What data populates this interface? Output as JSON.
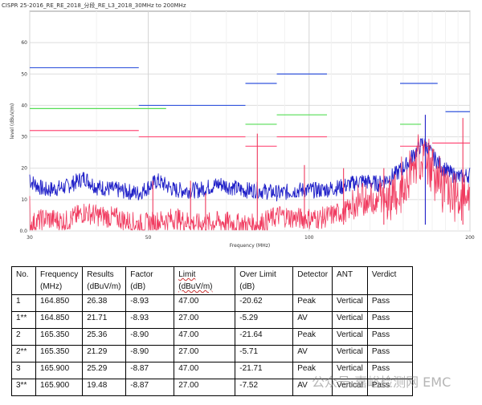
{
  "chart_data": {
    "type": "line",
    "title": "CISPR 25-2016_RE_RE_2018_分段_RE_L3_2018_30MHz to 200MHz",
    "xlabel": "Frequency (MHz)",
    "ylabel": "level (dBuV/m)",
    "xscale": "log",
    "xlim": [
      30,
      200
    ],
    "ylim": [
      0,
      70
    ],
    "x_ticks": [
      30,
      50,
      100,
      200
    ],
    "y_ticks": [
      0,
      10,
      20,
      30,
      40,
      50,
      60
    ],
    "y_tick_labels": [
      "0.0",
      "10",
      "20",
      "30",
      "40",
      "50",
      "60"
    ],
    "grid": true,
    "colors": {
      "peak": "#2020c8",
      "average": "#f03a5f",
      "limit_peak": "#3355dd",
      "limit_avg": "#ff4f7a",
      "limit_green": "#55dd55"
    },
    "limit_lines": [
      {
        "color": "#3355dd",
        "segments": [
          [
            30,
            48,
            52
          ],
          [
            48,
            76,
            40
          ],
          [
            76,
            87,
            47
          ],
          [
            87,
            108,
            50
          ],
          [
            148,
            174,
            47
          ],
          [
            180,
            200,
            38
          ]
        ]
      },
      {
        "color": "#55dd55",
        "segments": [
          [
            30,
            54,
            39
          ],
          [
            76,
            87,
            34
          ],
          [
            87,
            108,
            37
          ],
          [
            148,
            162,
            34
          ]
        ]
      },
      {
        "color": "#ff4f7a",
        "segments": [
          [
            30,
            48,
            32
          ],
          [
            48,
            76,
            30
          ],
          [
            76,
            87,
            27
          ],
          [
            87,
            108,
            30
          ],
          [
            148,
            162,
            27
          ],
          [
            170,
            200,
            28
          ]
        ]
      }
    ],
    "series": [
      {
        "name": "",
        "color": "#2020c8",
        "x": [
          30,
          32,
          35,
          38,
          40,
          44,
          48,
          52,
          56,
          62,
          68,
          75,
          80,
          88,
          95,
          105,
          115,
          125,
          135,
          145,
          152,
          158,
          163,
          166,
          170,
          178,
          185,
          192,
          200
        ],
        "y": [
          16,
          13,
          14,
          17,
          14,
          13,
          12,
          16,
          13,
          13,
          15,
          13,
          13,
          12,
          13,
          13,
          14,
          16,
          15,
          18,
          21,
          25,
          28,
          27,
          24,
          20,
          18,
          17,
          18
        ]
      },
      {
        "name": "",
        "color": "#f03a5f",
        "x": [
          30,
          32,
          35,
          38,
          40,
          44,
          48,
          52,
          56,
          62,
          68,
          75,
          80,
          88,
          95,
          105,
          115,
          125,
          135,
          145,
          152,
          158,
          163,
          166,
          170,
          178,
          185,
          192,
          200
        ],
        "y": [
          2,
          4,
          3,
          6,
          5,
          4,
          2,
          3,
          4,
          2,
          3,
          2,
          2,
          5,
          4,
          4,
          6,
          8,
          9,
          11,
          14,
          20,
          22,
          21,
          18,
          12,
          10,
          8,
          9
        ]
      }
    ],
    "spikes": [
      {
        "x": 51,
        "y": 16,
        "color": "#f03a5f"
      },
      {
        "x": 60,
        "y": 16,
        "color": "#f03a5f"
      },
      {
        "x": 64,
        "y": 12,
        "color": "#f03a5f"
      },
      {
        "x": 80,
        "y": 31,
        "color": "#f03a5f"
      },
      {
        "x": 98,
        "y": 21,
        "color": "#f03a5f"
      },
      {
        "x": 116,
        "y": 20,
        "color": "#f03a5f"
      },
      {
        "x": 138,
        "y": 20,
        "color": "#f03a5f"
      },
      {
        "x": 165,
        "y": 37,
        "color": "#2020c8"
      },
      {
        "x": 194,
        "y": 36,
        "color": "#f03a5f"
      }
    ],
    "markers": [
      {
        "label": "1",
        "x": 164.85,
        "y": 27
      },
      {
        "label": "2",
        "x": 165.35,
        "y": 26
      },
      {
        "label": "3",
        "x": 165.9,
        "y": 25
      }
    ]
  },
  "table": {
    "headers": [
      "No.",
      "Frequency (MHz)",
      "Results (dBuV/m)",
      "Factor (dB)",
      "Limit (dBuV/m)",
      "Over Limit (dB)",
      "Detector",
      "ANT",
      "Verdict"
    ],
    "rows": [
      [
        "1",
        "164.850",
        "26.38",
        "-8.93",
        "47.00",
        "-20.62",
        "Peak",
        "Vertical",
        "Pass"
      ],
      [
        "1**",
        "164.850",
        "21.71",
        "-8.93",
        "27.00",
        "-5.29",
        "AV",
        "Vertical",
        "Pass"
      ],
      [
        "2",
        "165.350",
        "25.36",
        "-8.90",
        "47.00",
        "-21.64",
        "Peak",
        "Vertical",
        "Pass"
      ],
      [
        "2**",
        "165.350",
        "21.29",
        "-8.90",
        "27.00",
        "-5.71",
        "AV",
        "Vertical",
        "Pass"
      ],
      [
        "3",
        "165.900",
        "25.29",
        "-8.87",
        "47.00",
        "-21.71",
        "Peak",
        "Vertical",
        "Pass"
      ],
      [
        "3**",
        "165.900",
        "19.48",
        "-8.87",
        "27.00",
        "-7.52",
        "AV",
        "Vertical",
        "Pass"
      ]
    ]
  },
  "watermark": "公众号·嘉峪检测网 EMC"
}
